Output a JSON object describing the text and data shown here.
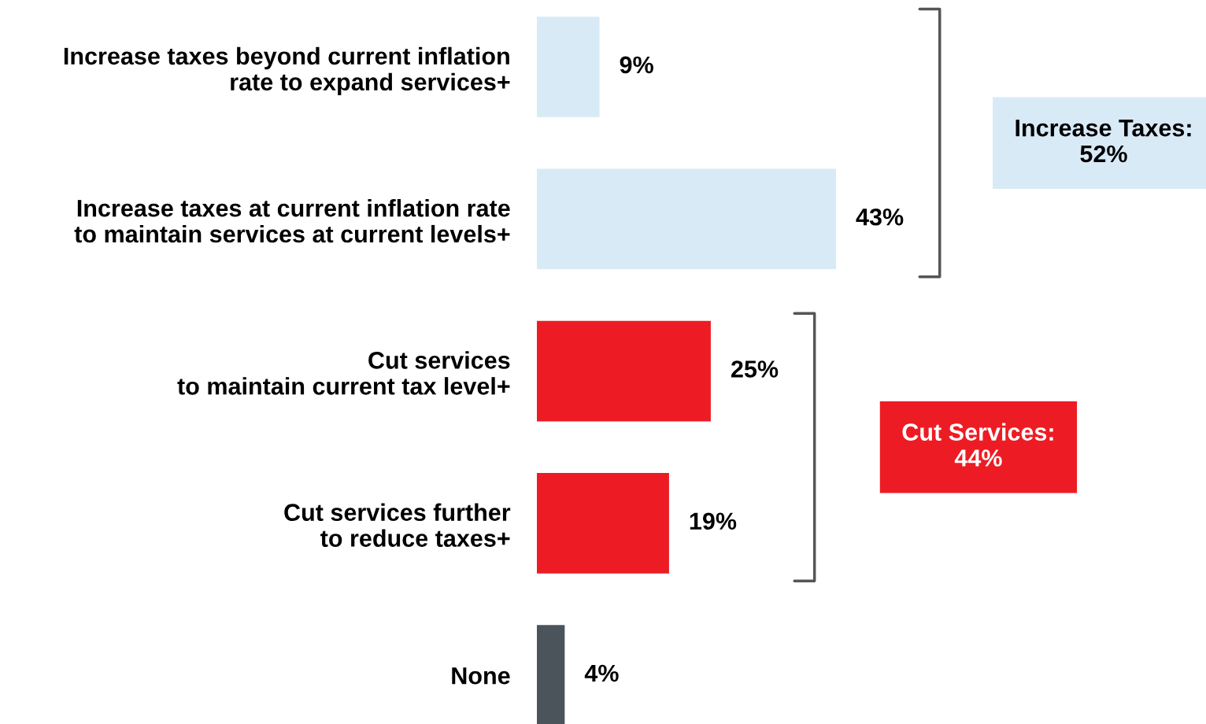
{
  "chart_data": {
    "type": "bar",
    "orientation": "horizontal",
    "categories": [
      "Increase taxes beyond current inflation\nrate to expand services+",
      "Increase taxes at current inflation rate\nto maintain services at current levels+",
      "Cut services\nto maintain current tax level+",
      "Cut services further\nto reduce taxes+",
      "None"
    ],
    "values": [
      9,
      43,
      25,
      19,
      4
    ],
    "colors": [
      "#d8eaf6",
      "#d8eaf6",
      "#ed1c24",
      "#ed1c24",
      "#4b535b"
    ],
    "value_labels": [
      "9%",
      "43%",
      "25%",
      "19%",
      "4%"
    ],
    "annotations": [
      "Increase Taxes:\n52%",
      "Cut Services:\n44%"
    ]
  }
}
